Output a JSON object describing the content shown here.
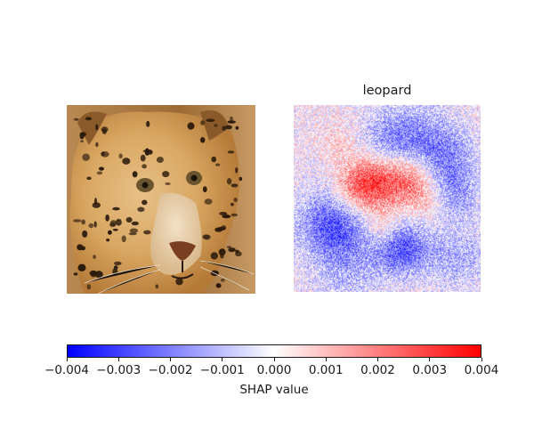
{
  "chart_data": {
    "type": "heatmap",
    "panels": [
      {
        "kind": "image",
        "content": "jaguar face photo"
      },
      {
        "kind": "shap-heatmap",
        "title": "leopard"
      }
    ],
    "colorbar": {
      "label": "SHAP value",
      "range": [
        -0.004,
        0.004
      ],
      "ticks": [
        -0.004,
        -0.003,
        -0.002,
        -0.001,
        0.0,
        0.001,
        0.002,
        0.003,
        0.004
      ],
      "tick_labels": [
        "−0.004",
        "−0.003",
        "−0.002",
        "−0.001",
        "0.000",
        "0.001",
        "0.002",
        "0.003",
        "0.004"
      ],
      "colormap": [
        "#0000ff",
        "#ffffff",
        "#ff0000"
      ]
    },
    "axes_visible": false,
    "grid": false
  }
}
